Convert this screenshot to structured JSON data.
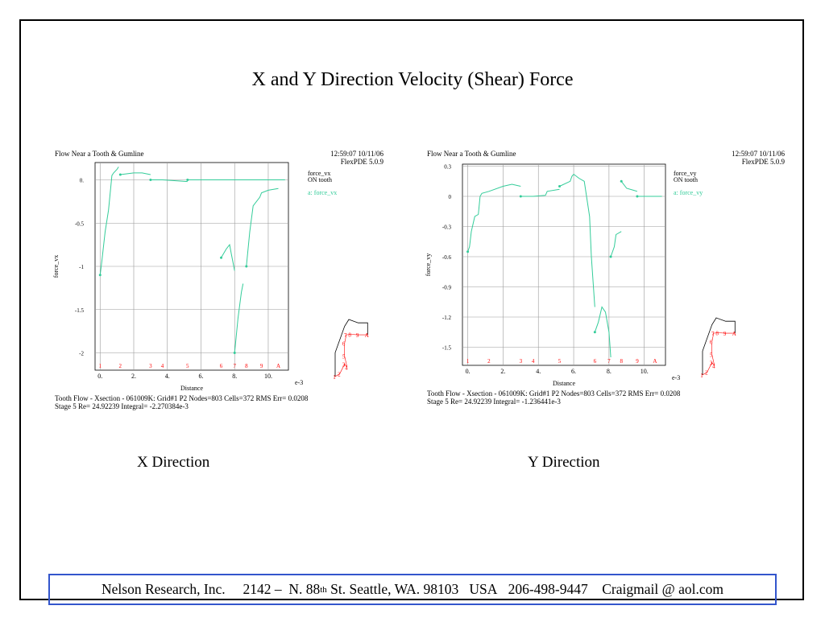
{
  "slide": {
    "title": "X and Y Direction Velocity (Shear) Force",
    "caption_x": "X Direction",
    "caption_y": "Y Direction"
  },
  "footer": {
    "company": "Nelson Research, Inc.",
    "address_pre": "2142 –  N. 88",
    "address_sup": "th",
    "address_post": " St. Seattle, WA. 98103",
    "country": "USA",
    "phone": "206-498-9447",
    "email": "Craigmail @ aol.com"
  },
  "colors": {
    "curve": "#33cc99",
    "outline": "#000000",
    "points": "#ff0000",
    "grid": "#999999",
    "footer_border": "#3355cc"
  },
  "chart_data": [
    {
      "type": "line",
      "title": "Flow Near a Tooth & Gumline",
      "timestamp": "12:59:07 10/11/06",
      "software": "FlexPDE 5.0.9",
      "legend_title": [
        "force_vx",
        "ON tooth"
      ],
      "legend_entry": "a: force_vx",
      "marker": "a",
      "xlabel": "Distance",
      "x_multiplier": "e-3",
      "ylabel": "force_vx",
      "xlim": [
        -0.3,
        11.2
      ],
      "ylim": [
        -2.2,
        0.2
      ],
      "x_ticks": [
        0,
        2,
        4,
        6,
        8,
        10
      ],
      "x_tick_labels": [
        "0.",
        "2.",
        "4.",
        "6.",
        "8.",
        "10."
      ],
      "y_ticks": [
        0,
        -0.5,
        -1,
        -1.5,
        -2
      ],
      "y_tick_labels": [
        "0.",
        "-0.5",
        "-1",
        "-1.5",
        "-2"
      ],
      "point_labels": [
        "1",
        "2",
        "3",
        "4",
        "5",
        "6",
        "7",
        "8",
        "9",
        "A"
      ],
      "point_positions": [
        0.0,
        1.2,
        3.0,
        3.7,
        5.2,
        7.2,
        8.0,
        8.7,
        9.6,
        10.6
      ],
      "series": [
        {
          "segments": [
            [
              [
                0.0,
                -1.1
              ],
              [
                0.1,
                -0.95
              ],
              [
                0.3,
                -0.6
              ],
              [
                0.5,
                -0.35
              ],
              [
                0.7,
                0.05
              ],
              [
                0.8,
                0.08
              ],
              [
                1.0,
                0.12
              ],
              [
                1.1,
                0.15
              ]
            ],
            [
              [
                1.2,
                0.06
              ],
              [
                2.0,
                0.08
              ],
              [
                2.5,
                0.08
              ],
              [
                3.0,
                0.06
              ]
            ],
            [
              [
                3.0,
                0.0
              ],
              [
                3.7,
                0.0
              ],
              [
                4.5,
                -0.01
              ],
              [
                5.2,
                -0.02
              ]
            ],
            [
              [
                5.2,
                0.0
              ],
              [
                9.6,
                0.0
              ],
              [
                10.6,
                0.0
              ],
              [
                11.0,
                0.0
              ]
            ],
            [
              [
                7.2,
                -0.9
              ],
              [
                7.5,
                -0.8
              ],
              [
                7.7,
                -0.75
              ],
              [
                7.8,
                -0.85
              ],
              [
                8.0,
                -1.05
              ]
            ],
            [
              [
                8.0,
                -2.0
              ],
              [
                8.2,
                -1.6
              ],
              [
                8.4,
                -1.3
              ],
              [
                8.5,
                -1.2
              ]
            ],
            [
              [
                8.7,
                -1.0
              ],
              [
                8.9,
                -0.6
              ],
              [
                9.1,
                -0.3
              ],
              [
                9.5,
                -0.2
              ],
              [
                9.6,
                -0.15
              ],
              [
                10.0,
                -0.12
              ],
              [
                10.6,
                -0.1
              ]
            ]
          ]
        }
      ],
      "footer_line1": "Tooth Flow - Xsection - 061009K:  Grid#1  P2  Nodes=803 Cells=372 RMS Err= 0.0208",
      "footer_line2": "Stage 5  Re=  24.92239  Integral= -2.270384e-3",
      "tooth_outline": [
        [
          0,
          0
        ],
        [
          0,
          2.8
        ],
        [
          1.1,
          5.9
        ],
        [
          1.6,
          6.7
        ],
        [
          2.7,
          6.3
        ],
        [
          3.8,
          6.3
        ],
        [
          3.8,
          4.9
        ]
      ],
      "tooth_points": [
        [
          0,
          0
        ],
        [
          0.55,
          0.35
        ],
        [
          1.1,
          1.45
        ],
        [
          1.4,
          1.1
        ],
        [
          1.1,
          2.4
        ],
        [
          1.1,
          3.9
        ],
        [
          1.3,
          4.9
        ],
        [
          1.8,
          4.95
        ],
        [
          2.7,
          4.9
        ],
        [
          3.8,
          4.9
        ]
      ]
    },
    {
      "type": "line",
      "title": "Flow Near a Tooth & Gumline",
      "timestamp": "12:59:07 10/11/06",
      "software": "FlexPDE 5.0.9",
      "legend_title": [
        "force_vy",
        "ON tooth"
      ],
      "legend_entry": "a: force_vy",
      "marker": "a",
      "xlabel": "Distance",
      "x_multiplier": "e-3",
      "ylabel": "force_vy",
      "xlim": [
        -0.3,
        11.2
      ],
      "ylim": [
        -1.68,
        0.32
      ],
      "x_ticks": [
        0,
        2,
        4,
        6,
        8,
        10
      ],
      "x_tick_labels": [
        "0.",
        "2.",
        "4.",
        "6.",
        "8.",
        "10."
      ],
      "y_ticks": [
        0.3,
        0,
        -0.3,
        -0.6,
        -0.9,
        -1.2,
        -1.5
      ],
      "y_tick_labels": [
        "0.3",
        "0",
        "-0.3",
        "-0.6",
        "-0.9",
        "-1.2",
        "-1.5"
      ],
      "point_labels": [
        "1",
        "2",
        "3",
        "4",
        "5",
        "6",
        "7",
        "8",
        "9",
        "A"
      ],
      "point_positions": [
        0.0,
        1.2,
        3.0,
        3.7,
        5.2,
        7.2,
        8.0,
        8.7,
        9.6,
        10.6
      ],
      "series": [
        {
          "segments": [
            [
              [
                0.0,
                -0.55
              ],
              [
                0.1,
                -0.5
              ],
              [
                0.2,
                -0.35
              ],
              [
                0.4,
                -0.2
              ],
              [
                0.6,
                -0.18
              ],
              [
                0.7,
                0.0
              ],
              [
                0.8,
                0.03
              ],
              [
                1.2,
                0.05
              ],
              [
                2.0,
                0.1
              ],
              [
                2.5,
                0.12
              ],
              [
                3.0,
                0.1
              ]
            ],
            [
              [
                3.0,
                0.0
              ],
              [
                3.7,
                0.0
              ],
              [
                4.4,
                0.01
              ],
              [
                4.5,
                0.05
              ],
              [
                5.2,
                0.07
              ]
            ],
            [
              [
                5.2,
                0.1
              ],
              [
                5.8,
                0.15
              ],
              [
                5.9,
                0.2
              ],
              [
                6.0,
                0.22
              ],
              [
                6.3,
                0.18
              ],
              [
                6.6,
                0.15
              ],
              [
                6.9,
                -0.2
              ],
              [
                7.0,
                -0.6
              ],
              [
                7.2,
                -1.1
              ]
            ],
            [
              [
                7.2,
                -1.35
              ],
              [
                7.4,
                -1.25
              ],
              [
                7.6,
                -1.1
              ],
              [
                7.8,
                -1.15
              ],
              [
                8.0,
                -1.35
              ],
              [
                8.1,
                -1.6
              ]
            ],
            [
              [
                8.1,
                -0.6
              ],
              [
                8.3,
                -0.5
              ],
              [
                8.4,
                -0.38
              ],
              [
                8.7,
                -0.35
              ]
            ],
            [
              [
                8.7,
                0.15
              ],
              [
                9.0,
                0.08
              ],
              [
                9.4,
                0.06
              ],
              [
                9.6,
                0.05
              ]
            ],
            [
              [
                9.6,
                0.0
              ],
              [
                11.0,
                0.0
              ]
            ]
          ]
        }
      ],
      "footer_line1": "Tooth Flow - Xsection - 061009K:  Grid#1  P2  Nodes=803 Cells=372 RMS Err= 0.0208",
      "footer_line2": "Stage 5  Re=  24.92239  Integral= -1.236441e-3",
      "tooth_outline": [
        [
          0,
          0
        ],
        [
          0,
          2.8
        ],
        [
          1.1,
          5.9
        ],
        [
          1.6,
          6.7
        ],
        [
          2.7,
          6.3
        ],
        [
          3.8,
          6.3
        ],
        [
          3.8,
          4.9
        ]
      ],
      "tooth_points": [
        [
          0,
          0
        ],
        [
          0.55,
          0.35
        ],
        [
          1.1,
          1.45
        ],
        [
          1.4,
          1.1
        ],
        [
          1.1,
          2.4
        ],
        [
          1.1,
          3.9
        ],
        [
          1.3,
          4.9
        ],
        [
          1.8,
          4.95
        ],
        [
          2.7,
          4.9
        ],
        [
          3.8,
          4.9
        ]
      ]
    }
  ]
}
